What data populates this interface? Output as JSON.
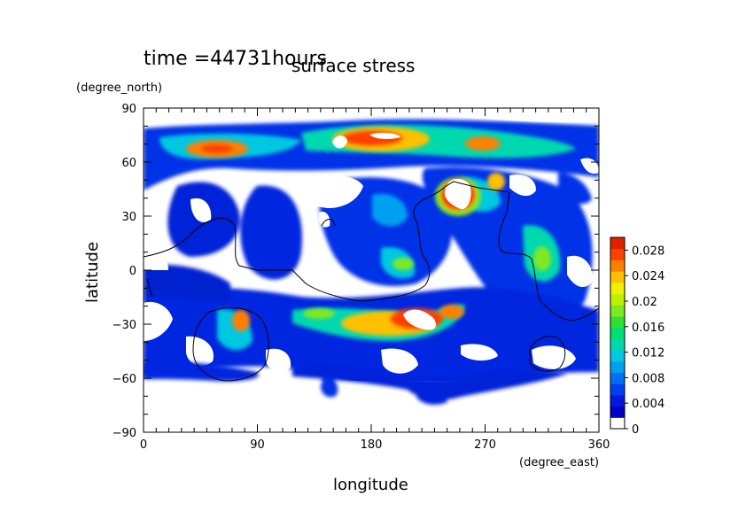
{
  "chart_data": {
    "type": "heatmap",
    "time_label": "time =44731hours",
    "title": "surface stress",
    "xlabel": "longitude",
    "ylabel": "latitude",
    "x_units": "(degree_east)",
    "y_units": "(degree_north)",
    "xlim": [
      0,
      360
    ],
    "ylim": [
      -90,
      90
    ],
    "x_ticks": [
      "0",
      "90",
      "180",
      "270",
      "360"
    ],
    "y_ticks": [
      "90",
      "60",
      "30",
      "0",
      "−30",
      "−60",
      "−90"
    ],
    "colorbar": {
      "range": [
        0,
        0.03
      ],
      "tick_labels": [
        "0",
        "0.004",
        "0.008",
        "0.012",
        "0.016",
        "0.02",
        "0.024",
        "0.028"
      ],
      "colors": [
        "#ffffff",
        "#0000c8",
        "#0018e0",
        "#0040f0",
        "#0070f8",
        "#00a0f0",
        "#00c8e0",
        "#00d8b0",
        "#00e070",
        "#30e030",
        "#80e820",
        "#c0f000",
        "#f0f000",
        "#ffc000",
        "#ff8000",
        "#ff4000",
        "#e02000"
      ]
    },
    "features": [
      {
        "lon": 55,
        "lat": 68,
        "value": 0.02
      },
      {
        "lon": 100,
        "lat": 68,
        "value": 0.014
      },
      {
        "lon": 185,
        "lat": 76,
        "value": 0.03
      },
      {
        "lon": 235,
        "lat": 72,
        "value": 0.02
      },
      {
        "lon": 275,
        "lat": 68,
        "value": 0.02
      },
      {
        "lon": 330,
        "lat": 68,
        "value": 0.008
      },
      {
        "lon": 253,
        "lat": 45,
        "value": 0.03
      },
      {
        "lon": 290,
        "lat": 45,
        "value": 0.016
      },
      {
        "lon": 320,
        "lat": 10,
        "value": 0.016
      },
      {
        "lon": 210,
        "lat": 2,
        "value": 0.016
      },
      {
        "lon": 225,
        "lat": -28,
        "value": 0.03
      },
      {
        "lon": 150,
        "lat": -25,
        "value": 0.016
      },
      {
        "lon": 260,
        "lat": -25,
        "value": 0.02
      },
      {
        "lon": 75,
        "lat": -30,
        "value": 0.024
      },
      {
        "lon": 30,
        "lat": -25,
        "value": 0.008
      },
      {
        "lon": 300,
        "lat": -30,
        "value": 0.012
      },
      {
        "lon": 190,
        "lat": -45,
        "value": 0.008
      },
      {
        "lon": 130,
        "lat": -10,
        "value": 0.012
      },
      {
        "lon": 175,
        "lat": 35,
        "value": 0.008
      }
    ]
  }
}
